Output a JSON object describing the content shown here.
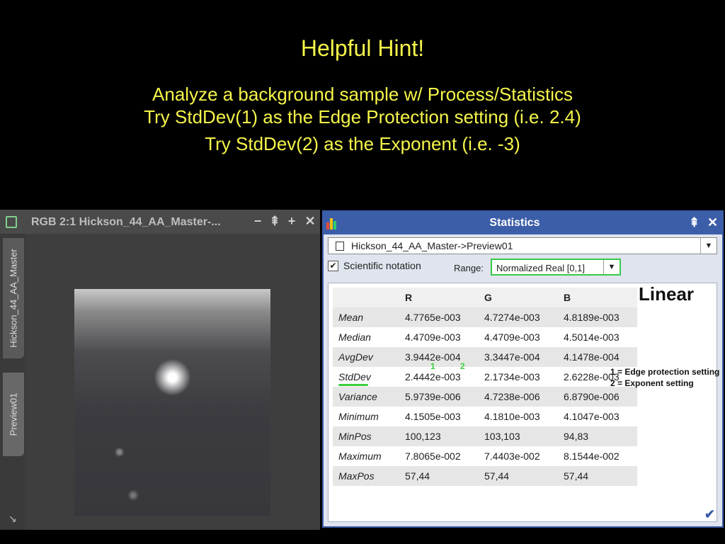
{
  "hint": {
    "title": "Helpful Hint!",
    "lines": [
      "Analyze a background sample w/ Process/Statistics",
      "Try StdDev(1) as the Edge Protection setting (i.e. 2.4)",
      "Try StdDev(2) as the Exponent (i.e. -3)"
    ]
  },
  "image_window": {
    "title": "RGB 2:1 Hickson_44_AA_Master-...",
    "buttons": [
      "−",
      "⇞",
      "+",
      "✕"
    ],
    "tabs": [
      "Hickson_44_AA_Master",
      "Preview01"
    ],
    "icon": "image-window-icon"
  },
  "statistics": {
    "title": "Statistics",
    "view_selector": "Hickson_44_AA_Master->Preview01",
    "scientific_notation_label": "Scientific notation",
    "scientific_notation_checked": true,
    "check_glyph": "✔",
    "range_label": "Range:",
    "range_value": "Normalized Real [0,1]",
    "columns": [
      "",
      "R",
      "G",
      "B"
    ],
    "rows": [
      {
        "name": "Mean",
        "r": "4.7765e-003",
        "g": "4.7274e-003",
        "b": "4.8189e-003"
      },
      {
        "name": "Median",
        "r": "4.4709e-003",
        "g": "4.4709e-003",
        "b": "4.5014e-003"
      },
      {
        "name": "AvgDev",
        "r": "3.9442e-004",
        "g": "3.3447e-004",
        "b": "4.1478e-004"
      },
      {
        "name": "StdDev",
        "r": "2.4442e-003",
        "g": "2.1734e-003",
        "b": "2.6228e-003"
      },
      {
        "name": "Variance",
        "r": "5.9739e-006",
        "g": "4.7238e-006",
        "b": "6.8790e-006"
      },
      {
        "name": "Minimum",
        "r": "4.1505e-003",
        "g": "4.1810e-003",
        "b": "4.1047e-003"
      },
      {
        "name": "MinPos",
        "r": "100,123",
        "g": "103,103",
        "b": "94,83"
      },
      {
        "name": "Maximum",
        "r": "7.8065e-002",
        "g": "7.4403e-002",
        "b": "8.1544e-002"
      },
      {
        "name": "MaxPos",
        "r": "57,44",
        "g": "57,44",
        "b": "57,44"
      }
    ],
    "annotation_linear": "Linear",
    "annotation_1": "1 = Edge protection setting",
    "annotation_2": "2 = Exponent setting",
    "marker_1": "1",
    "marker_2": "2",
    "accent_color": "#3c5ea9",
    "highlight_color": "#39c94b"
  },
  "colors": {
    "hint_text": "#f5f54a",
    "background": "#000000"
  }
}
